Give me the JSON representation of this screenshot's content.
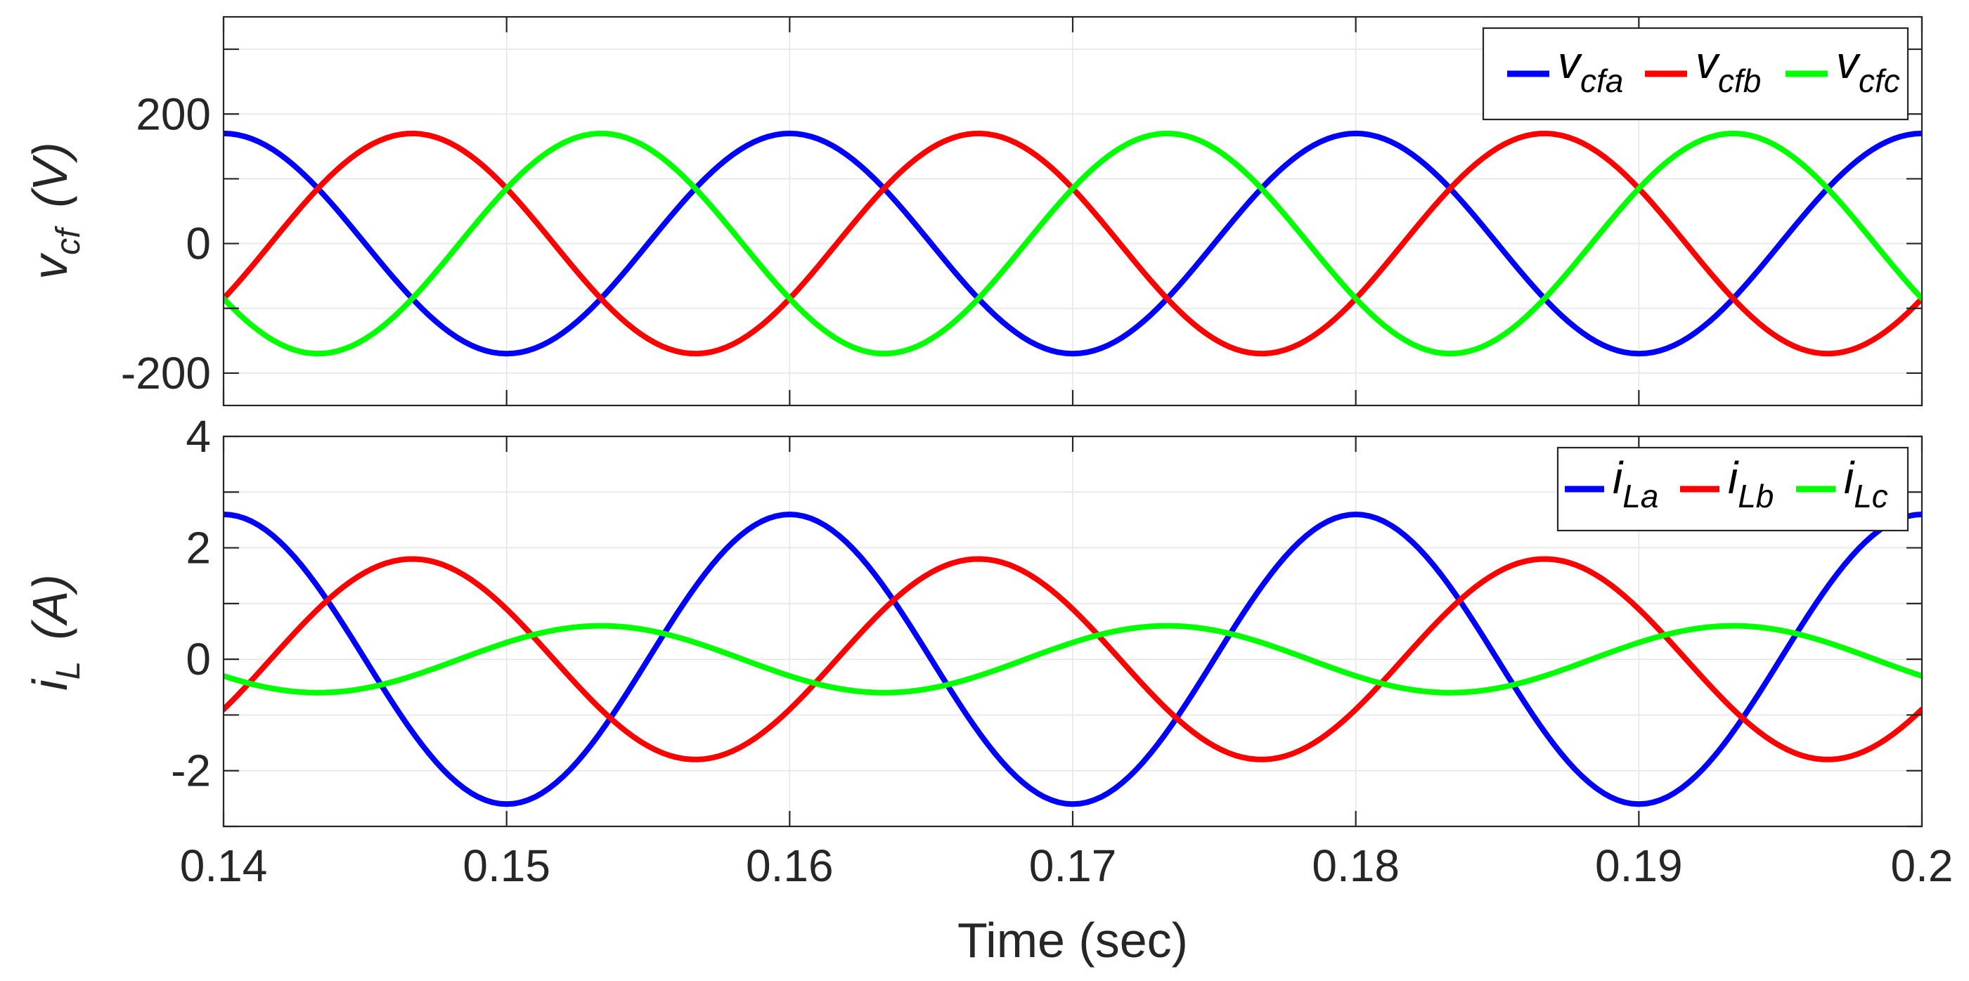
{
  "chart_data": [
    {
      "type": "line",
      "panel": "top",
      "title": "",
      "xlabel": "",
      "ylabel": "v_cf (V)",
      "ylabel_parts": {
        "main": "v",
        "sub": "cf",
        "unit": "(V)"
      },
      "xlim": [
        0.14,
        0.2
      ],
      "ylim": [
        -250,
        350
      ],
      "yticks": [
        -200,
        0,
        200
      ],
      "yticklabels": [
        "-200",
        "0",
        "200"
      ],
      "grid": true,
      "legend": "top-right",
      "waveform": {
        "frequency_hz": 50,
        "samples": 241
      },
      "series": [
        {
          "name": "v_cfa",
          "label_main": "v",
          "label_sub": "cfa",
          "color": "#0000ff",
          "amplitude": 170,
          "phase_deg": 0
        },
        {
          "name": "v_cfb",
          "label_main": "v",
          "label_sub": "cfb",
          "color": "#ff0000",
          "amplitude": 170,
          "phase_deg": -120
        },
        {
          "name": "v_cfc",
          "label_main": "v",
          "label_sub": "cfc",
          "color": "#00ff00",
          "amplitude": 170,
          "phase_deg": 120
        }
      ]
    },
    {
      "type": "line",
      "panel": "bottom",
      "title": "",
      "xlabel": "Time (sec)",
      "ylabel": "i_L (A)",
      "ylabel_parts": {
        "main": "i",
        "sub": "L",
        "unit": "(A)"
      },
      "xlim": [
        0.14,
        0.2
      ],
      "ylim": [
        -3,
        4
      ],
      "yticks": [
        -2,
        0,
        2,
        4
      ],
      "yticklabels": [
        "-2",
        "0",
        "2",
        "4"
      ],
      "xticks": [
        0.14,
        0.15,
        0.16,
        0.17,
        0.18,
        0.19,
        0.2
      ],
      "xticklabels": [
        "0.14",
        "0.15",
        "0.16",
        "0.17",
        "0.18",
        "0.19",
        "0.2"
      ],
      "grid": true,
      "legend": "top-right",
      "waveform": {
        "frequency_hz": 50,
        "samples": 241
      },
      "series": [
        {
          "name": "i_La",
          "label_main": "i",
          "label_sub": "La",
          "color": "#0000ff",
          "amplitude": 2.6,
          "phase_deg": 0
        },
        {
          "name": "i_Lb",
          "label_main": "i",
          "label_sub": "Lb",
          "color": "#ff0000",
          "amplitude": 1.8,
          "phase_deg": -120
        },
        {
          "name": "i_Lc",
          "label_main": "i",
          "label_sub": "Lc",
          "color": "#00ff00",
          "amplitude": 0.6,
          "phase_deg": 120
        }
      ]
    }
  ]
}
